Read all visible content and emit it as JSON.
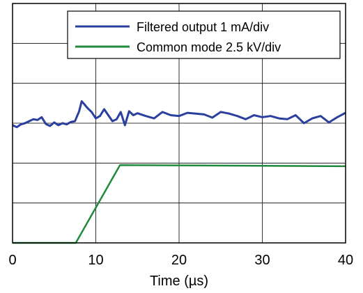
{
  "chart_data": {
    "type": "line",
    "xlabel": "Time (µs)",
    "ylabel": "",
    "xlim": [
      0,
      40
    ],
    "ylim": [
      0,
      6
    ],
    "x_ticks": [
      0,
      10,
      20,
      30,
      40
    ],
    "x_tick_labels": [
      "0",
      "10",
      "20",
      "30",
      "40"
    ],
    "grid": true,
    "y_divisions": 6,
    "legend_position": "top-right",
    "series": [
      {
        "name": "Filtered output 1 mA/div",
        "color": "#2b3f9e",
        "x": [
          0,
          0.5,
          1,
          1.5,
          2,
          2.5,
          3,
          3.5,
          4,
          4.5,
          5,
          5.5,
          6,
          6.5,
          7,
          7.5,
          8,
          8.3,
          8.6,
          9,
          9.5,
          10,
          10.5,
          11,
          11.5,
          12,
          12.5,
          13,
          13.5,
          14,
          14.5,
          15,
          16,
          17,
          18,
          19,
          20,
          21,
          22,
          23,
          24,
          25,
          26,
          27,
          28,
          29,
          30,
          31,
          32,
          33,
          34,
          35,
          36,
          37,
          38,
          39,
          40
        ],
        "y": [
          2.95,
          2.9,
          2.97,
          3.0,
          3.05,
          3.1,
          3.08,
          3.15,
          2.98,
          2.93,
          3.02,
          2.95,
          3.0,
          2.97,
          3.03,
          3.05,
          3.3,
          3.55,
          3.48,
          3.38,
          3.28,
          3.12,
          3.18,
          3.35,
          3.2,
          3.05,
          3.1,
          3.28,
          2.95,
          3.3,
          3.2,
          3.25,
          3.18,
          3.12,
          3.28,
          3.2,
          3.18,
          3.26,
          3.24,
          3.22,
          3.14,
          3.28,
          3.24,
          3.18,
          3.1,
          3.2,
          3.15,
          3.18,
          3.12,
          3.1,
          3.2,
          3.0,
          3.12,
          3.18,
          3.02,
          3.15,
          3.26
        ]
      },
      {
        "name": "Common mode 2.5 kV/div",
        "color": "#1f8a3c",
        "x": [
          0,
          7.6,
          12.9,
          40
        ],
        "y": [
          0.0,
          0.0,
          1.95,
          1.92
        ]
      }
    ]
  },
  "legend": {
    "entries": [
      {
        "label": "Filtered output 1 mA/div",
        "color": "#2b3f9e"
      },
      {
        "label": "Common mode 2.5 kV/div",
        "color": "#1f8a3c"
      }
    ]
  }
}
